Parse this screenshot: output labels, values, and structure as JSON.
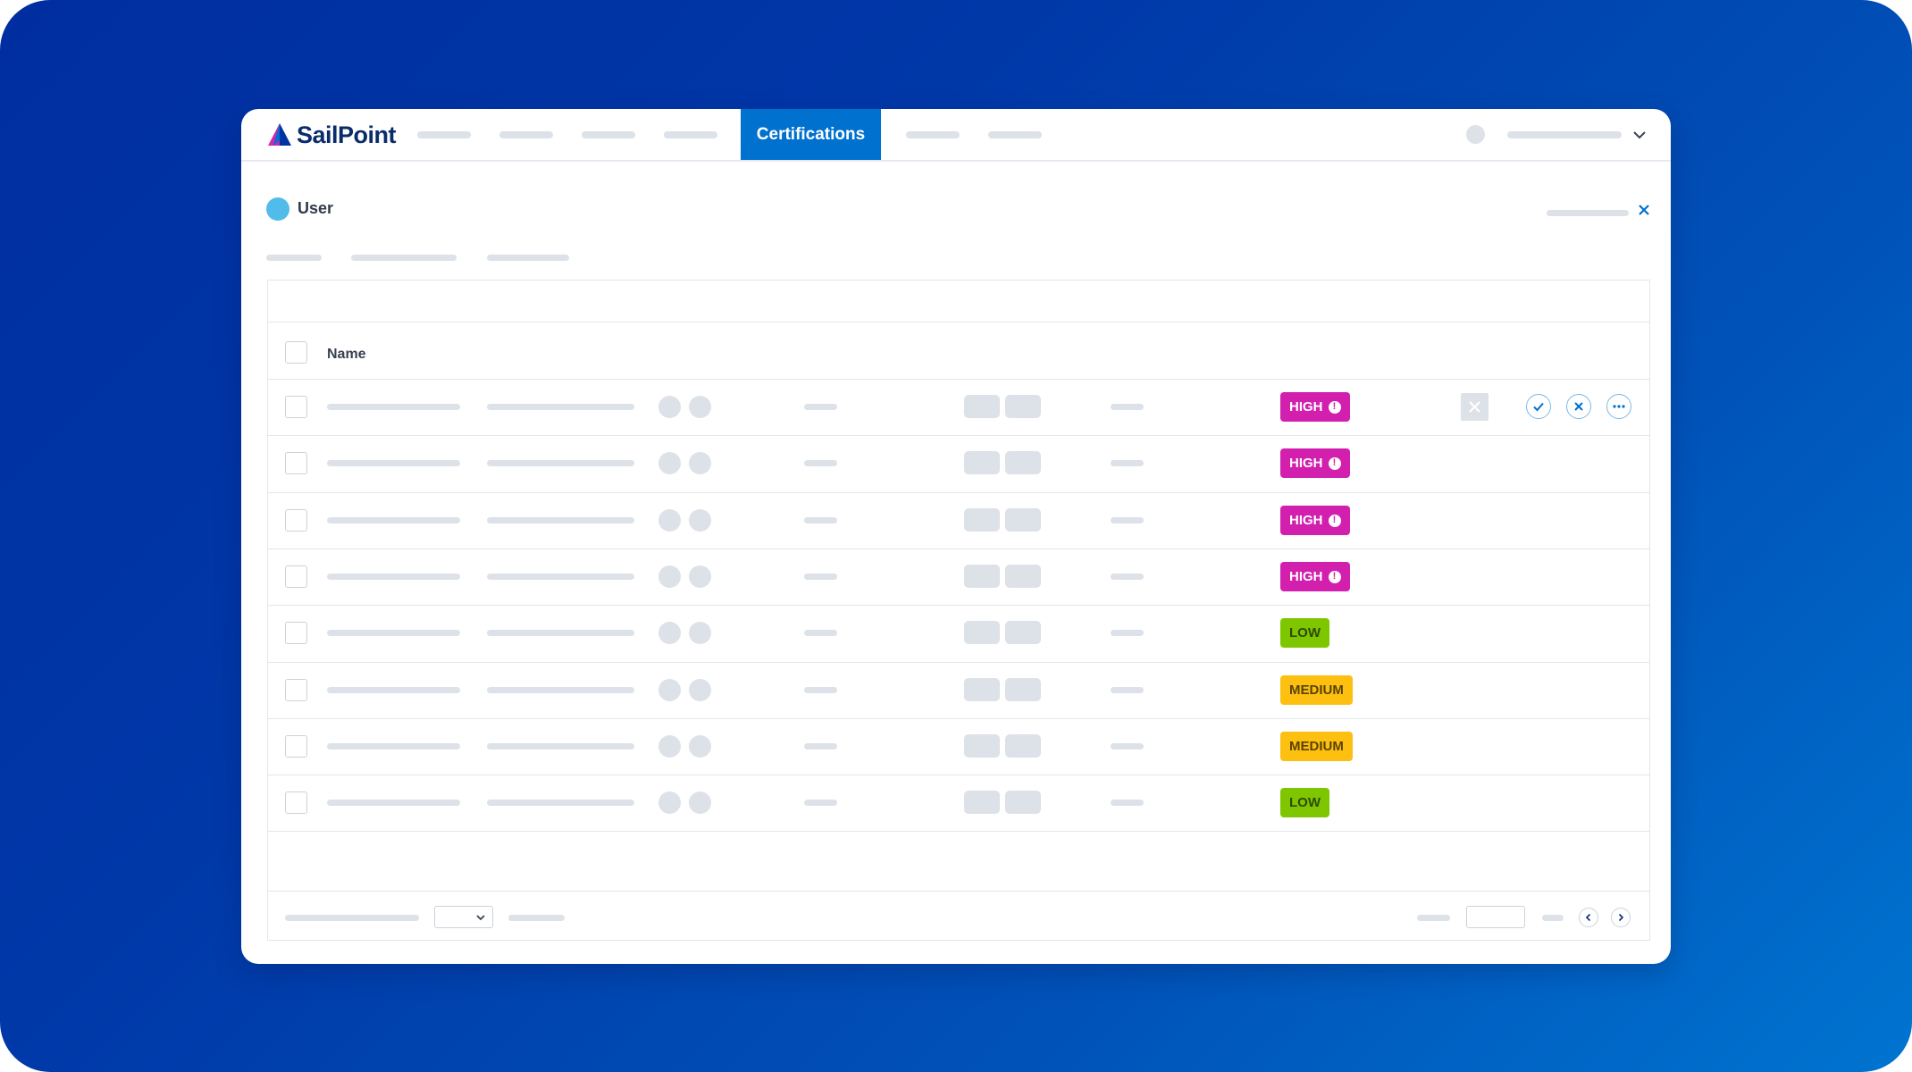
{
  "brand": {
    "name": "SailPoint"
  },
  "nav": {
    "active_tab": "Certifications"
  },
  "identity": {
    "label": "User"
  },
  "table": {
    "column_header": "Name",
    "rows": [
      {
        "risk": "HIGH",
        "risk_color": "#d21fae",
        "alert": true
      },
      {
        "risk": "HIGH",
        "risk_color": "#d21fae",
        "alert": true
      },
      {
        "risk": "HIGH",
        "risk_color": "#d21fae",
        "alert": true
      },
      {
        "risk": "HIGH",
        "risk_color": "#d21fae",
        "alert": true
      },
      {
        "risk": "LOW",
        "risk_color": "#7ec600",
        "alert": false
      },
      {
        "risk": "MEDIUM",
        "risk_color": "#fdbf10",
        "alert": false
      },
      {
        "risk": "MEDIUM",
        "risk_color": "#fdbf10",
        "alert": false
      },
      {
        "risk": "LOW",
        "risk_color": "#7ec600",
        "alert": false
      }
    ],
    "row_actions": [
      "revoke-icon",
      "approve-check-icon",
      "reject-x-icon",
      "more-ellipsis-icon"
    ]
  },
  "colors": {
    "accent": "#0071ce",
    "high": "#d21fae",
    "medium": "#fdbf10",
    "low": "#7ec600",
    "user_dot": "#51bbe9"
  },
  "icons": {
    "alert": "!",
    "dropdown": "chevron-down-icon",
    "close": "close-icon",
    "prev": "chevron-left-icon",
    "next": "chevron-right-icon"
  }
}
